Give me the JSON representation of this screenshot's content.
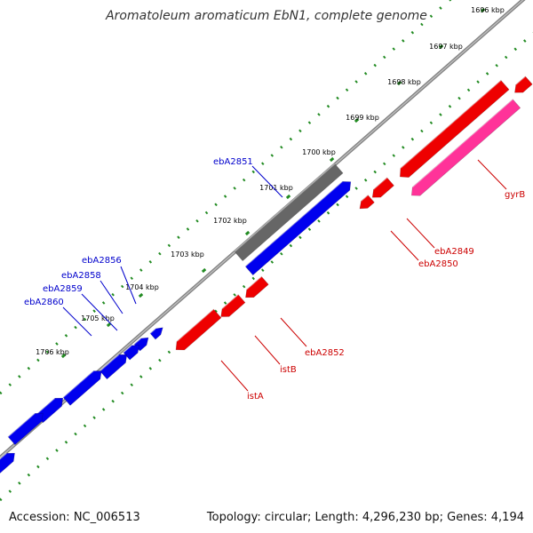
{
  "title": "Aromatoleum aromaticum EbN1, complete genome",
  "accession": "Accession: NC_006513",
  "summary": "Topology: circular; Length: 4,296,230 bp; Genes: 4,194",
  "colors": {
    "background": "#ffffff",
    "backbone": "#808080",
    "forward_gene": "#0000ee",
    "reverse_gene": "#ee0000",
    "rrna_like": "#ff3399",
    "highlight": "#666666",
    "tick": "#228b22",
    "kbp_label": "#000000",
    "forward_label": "#0000cc",
    "reverse_label": "#cc0000"
  },
  "kbp_ticks": [
    "1696 kbp",
    "1697 kbp",
    "1698 kbp",
    "1699 kbp",
    "1700 kbp",
    "1701 kbp",
    "1702 kbp",
    "1703 kbp",
    "1704 kbp",
    "1705 kbp",
    "1706 kbp"
  ],
  "gene_labels": {
    "forward": [
      "ebA2851",
      "ebA2856",
      "ebA2858",
      "ebA2859",
      "ebA2860"
    ],
    "reverse": [
      "gyrB",
      "ebA2849",
      "ebA2850",
      "ebA2852",
      "istB",
      "istA"
    ]
  }
}
